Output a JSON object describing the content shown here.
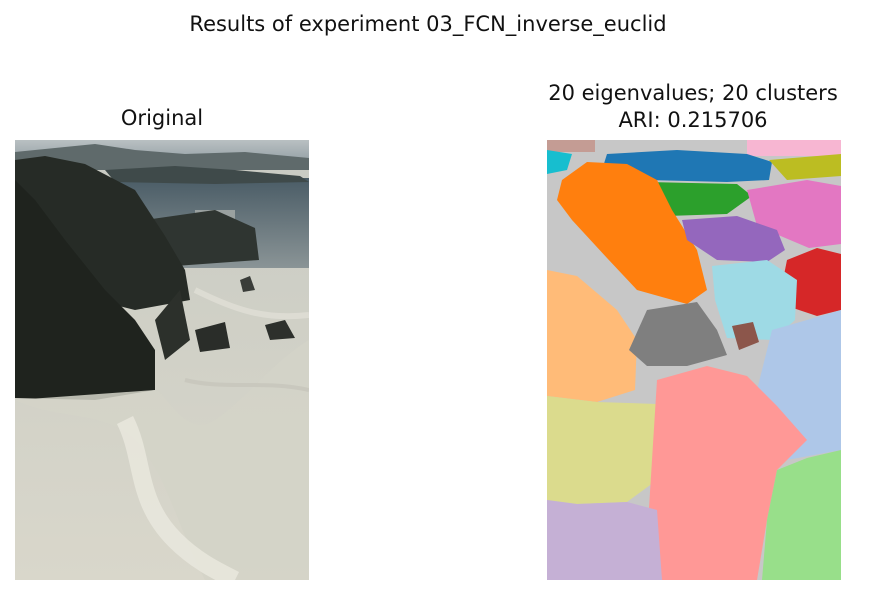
{
  "figure": {
    "suptitle": "Results of experiment 03_FCN_inverse_euclid",
    "left_title": "Original",
    "right_title_line1": "20 eigenvalues; 20 clusters",
    "right_title_line2": "ARI: 0.215706"
  },
  "colors": {
    "cluster_background": "#c7c7c7",
    "clusters": [
      "#1f77b4",
      "#ff7f0e",
      "#2ca02c",
      "#d62728",
      "#9467bd",
      "#8c564b",
      "#e377c2",
      "#7f7f7f",
      "#bcbd22",
      "#17becf",
      "#aec7e8",
      "#ffbb78",
      "#98df8a",
      "#ff9896",
      "#c5b0d5",
      "#c49c94",
      "#f7b6d2",
      "#dbdb8d",
      "#9edae5"
    ]
  }
}
